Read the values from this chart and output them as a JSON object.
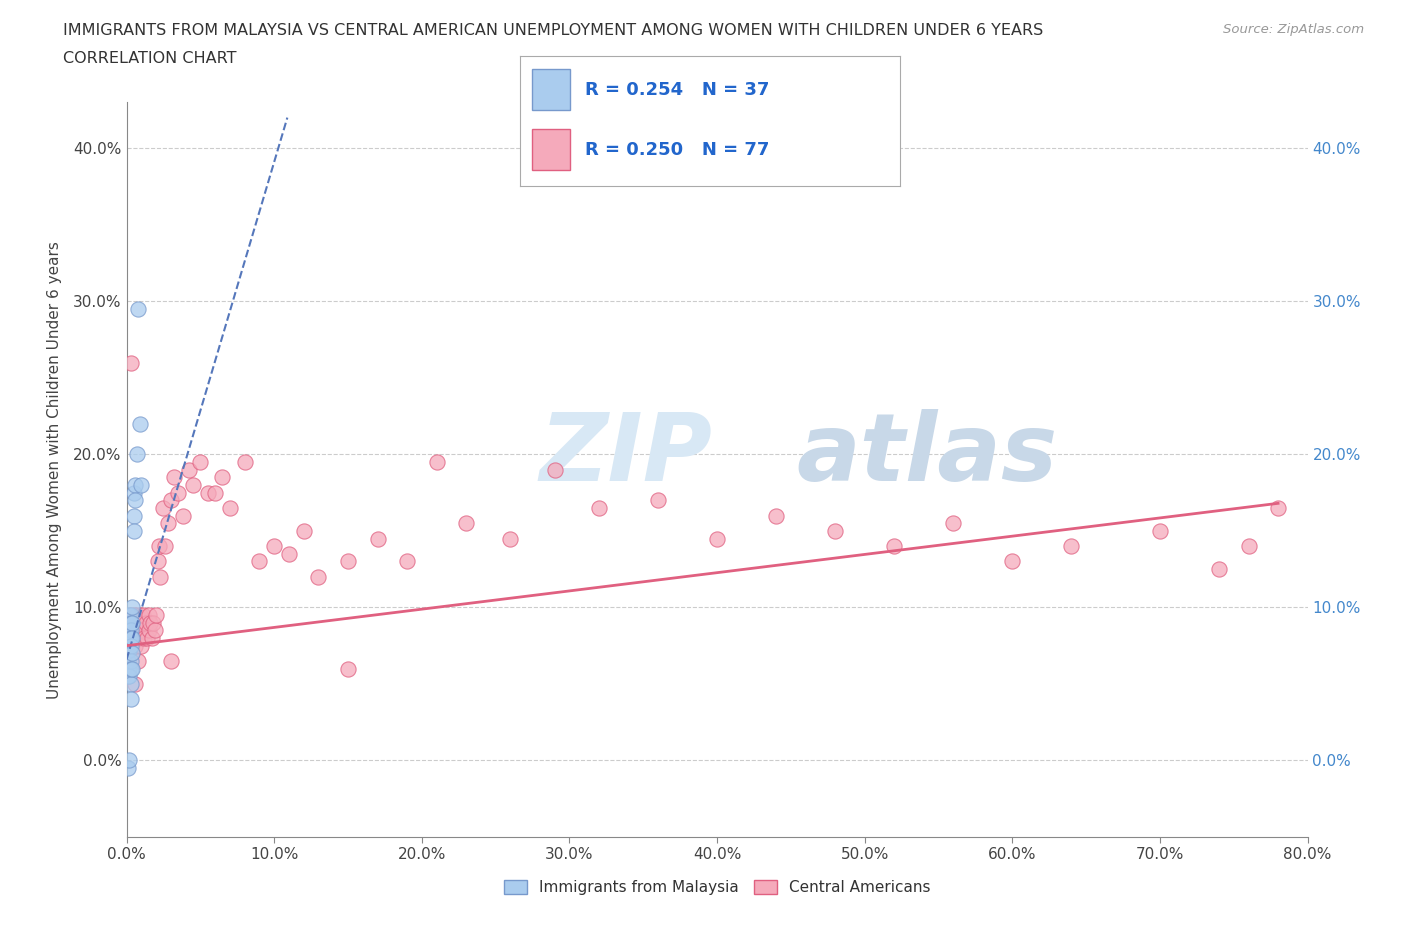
{
  "title_line1": "IMMIGRANTS FROM MALAYSIA VS CENTRAL AMERICAN UNEMPLOYMENT AMONG WOMEN WITH CHILDREN UNDER 6 YEARS",
  "title_line2": "CORRELATION CHART",
  "source_text": "Source: ZipAtlas.com",
  "ylabel": "Unemployment Among Women with Children Under 6 years",
  "xlim": [
    0.0,
    0.8
  ],
  "ylim": [
    -0.05,
    0.43
  ],
  "malaysia_R": 0.254,
  "malaysia_N": 37,
  "central_R": 0.25,
  "central_N": 77,
  "malaysia_color": "#aaccee",
  "malaysia_edge_color": "#7799cc",
  "central_color": "#f5aabb",
  "central_edge_color": "#e06080",
  "malaysia_line_color": "#5577bb",
  "central_line_color": "#e06080",
  "watermark_color": "#d8e8f5",
  "watermark_color2": "#c8d8e8",
  "legend_malaysia_label": "Immigrants from Malaysia",
  "legend_central_label": "Central Americans",
  "malaysia_x": [
    0.001,
    0.001,
    0.001,
    0.001,
    0.001,
    0.002,
    0.002,
    0.002,
    0.002,
    0.002,
    0.002,
    0.002,
    0.003,
    0.003,
    0.003,
    0.003,
    0.003,
    0.003,
    0.003,
    0.003,
    0.003,
    0.004,
    0.004,
    0.004,
    0.004,
    0.004,
    0.005,
    0.005,
    0.005,
    0.006,
    0.006,
    0.007,
    0.008,
    0.009,
    0.01,
    0.001,
    0.002
  ],
  "malaysia_y": [
    0.08,
    0.075,
    0.065,
    0.06,
    0.055,
    0.095,
    0.09,
    0.085,
    0.08,
    0.072,
    0.06,
    0.055,
    0.095,
    0.09,
    0.085,
    0.08,
    0.075,
    0.065,
    0.06,
    0.05,
    0.04,
    0.1,
    0.09,
    0.08,
    0.07,
    0.06,
    0.175,
    0.16,
    0.15,
    0.18,
    0.17,
    0.2,
    0.295,
    0.22,
    0.18,
    -0.005,
    0.0
  ],
  "central_x": [
    0.001,
    0.002,
    0.002,
    0.003,
    0.003,
    0.004,
    0.004,
    0.005,
    0.005,
    0.006,
    0.006,
    0.007,
    0.007,
    0.008,
    0.008,
    0.009,
    0.009,
    0.01,
    0.01,
    0.011,
    0.012,
    0.013,
    0.014,
    0.015,
    0.015,
    0.016,
    0.017,
    0.018,
    0.019,
    0.02,
    0.021,
    0.022,
    0.023,
    0.025,
    0.026,
    0.028,
    0.03,
    0.032,
    0.035,
    0.038,
    0.042,
    0.045,
    0.05,
    0.055,
    0.06,
    0.065,
    0.07,
    0.08,
    0.09,
    0.1,
    0.11,
    0.12,
    0.13,
    0.15,
    0.17,
    0.19,
    0.21,
    0.23,
    0.26,
    0.29,
    0.32,
    0.36,
    0.4,
    0.44,
    0.48,
    0.52,
    0.56,
    0.6,
    0.64,
    0.7,
    0.74,
    0.76,
    0.78,
    0.003,
    0.006,
    0.03,
    0.15
  ],
  "central_y": [
    0.09,
    0.085,
    0.075,
    0.095,
    0.08,
    0.085,
    0.07,
    0.095,
    0.08,
    0.09,
    0.075,
    0.095,
    0.08,
    0.09,
    0.065,
    0.095,
    0.08,
    0.085,
    0.075,
    0.095,
    0.08,
    0.09,
    0.08,
    0.095,
    0.085,
    0.09,
    0.08,
    0.09,
    0.085,
    0.095,
    0.13,
    0.14,
    0.12,
    0.165,
    0.14,
    0.155,
    0.17,
    0.185,
    0.175,
    0.16,
    0.19,
    0.18,
    0.195,
    0.175,
    0.175,
    0.185,
    0.165,
    0.195,
    0.13,
    0.14,
    0.135,
    0.15,
    0.12,
    0.13,
    0.145,
    0.13,
    0.195,
    0.155,
    0.145,
    0.19,
    0.165,
    0.17,
    0.145,
    0.16,
    0.15,
    0.14,
    0.155,
    0.13,
    0.14,
    0.15,
    0.125,
    0.14,
    0.165,
    0.26,
    0.05,
    0.065,
    0.06
  ],
  "trendline_mal_x0": 0.0,
  "trendline_mal_y0": 0.066,
  "trendline_mal_x1": 0.012,
  "trendline_mal_y1": 0.105,
  "trendline_cen_x0": 0.0,
  "trendline_cen_y0": 0.075,
  "trendline_cen_x1": 0.78,
  "trendline_cen_y1": 0.168
}
